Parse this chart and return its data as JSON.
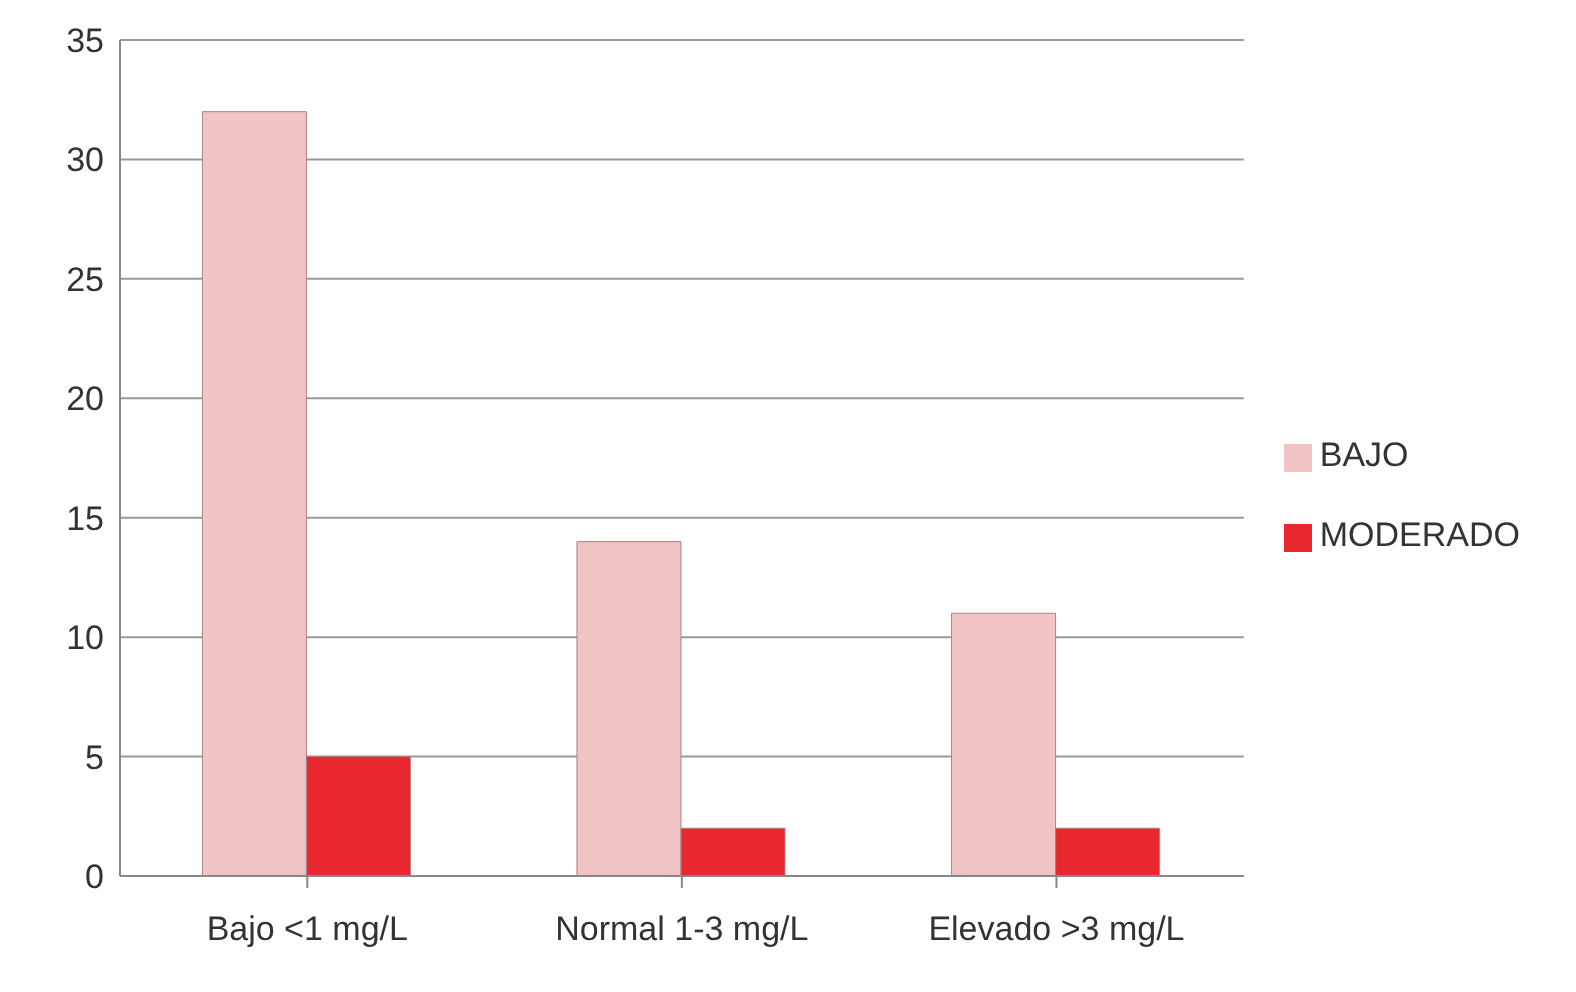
{
  "chart_data": {
    "type": "bar",
    "categories": [
      "Bajo <1 mg/L",
      "Normal 1-3 mg/L",
      "Elevado >3 mg/L"
    ],
    "series": [
      {
        "name": "BAJO",
        "color": "#f0c4c4",
        "values": [
          32,
          14,
          11
        ]
      },
      {
        "name": "MODERADO",
        "color": "#e8282e",
        "values": [
          5,
          2,
          2
        ]
      }
    ],
    "ylim": [
      0,
      35
    ],
    "yticks": [
      0,
      5,
      10,
      15,
      20,
      25,
      30,
      35
    ],
    "grid": "y",
    "legend": "right"
  }
}
